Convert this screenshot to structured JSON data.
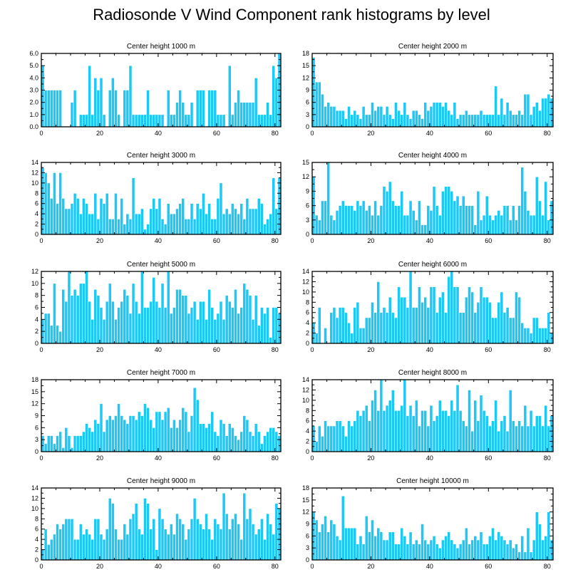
{
  "title": "Radiosonde V Wind Component rank histograms by level",
  "colors": {
    "bar": "#1ec8f5",
    "bar_edge": "#ffffff",
    "axis": "#000000"
  },
  "chart_data": [
    {
      "type": "bar",
      "title": "Center height 1000 m",
      "ylim": [
        0,
        6
      ],
      "yticks": [
        0,
        1,
        2,
        3,
        4,
        5,
        6
      ],
      "ytick_labels": [
        "0.0",
        "1.0",
        "2.0",
        "3.0",
        "4.0",
        "5.0",
        "6.0"
      ],
      "xlim": [
        0,
        82
      ],
      "xticks": [
        0,
        20,
        40,
        60,
        80
      ],
      "xtick_labels": [
        "0",
        "20",
        "40",
        "60",
        "80"
      ],
      "y_side": "left",
      "values": [
        5,
        3,
        3,
        3,
        3,
        3,
        3,
        0,
        0,
        0,
        2,
        3,
        0,
        1,
        1,
        1,
        5,
        1,
        4,
        3,
        4,
        1,
        0,
        3,
        4,
        3,
        1,
        0,
        3,
        3,
        5,
        1,
        1,
        1,
        1,
        1,
        3,
        1,
        1,
        1,
        1,
        1,
        0,
        3,
        1,
        1,
        2,
        3,
        2,
        1,
        1,
        2,
        0,
        3,
        3,
        3,
        0,
        3,
        3,
        3,
        1,
        1,
        1,
        0,
        5,
        1,
        2,
        3,
        2,
        2,
        2,
        2,
        2,
        4,
        1,
        1,
        1,
        2,
        1,
        5,
        4,
        6
      ]
    },
    {
      "type": "bar",
      "title": "Center height 2000 m",
      "ylim": [
        0,
        18
      ],
      "yticks": [
        0,
        3,
        6,
        9,
        12,
        15,
        18
      ],
      "ytick_labels": [
        "0",
        "3",
        "6",
        "9",
        "12",
        "15",
        "18"
      ],
      "xlim": [
        0,
        82
      ],
      "xticks": [
        0,
        20,
        40,
        60,
        80
      ],
      "xtick_labels": [
        "0",
        "20",
        "40",
        "60",
        "80"
      ],
      "y_side": "right",
      "values": [
        17,
        11,
        11,
        8,
        5,
        6,
        5,
        5,
        4,
        4,
        4,
        2,
        5,
        3,
        4,
        3,
        2,
        5,
        3,
        3,
        6,
        4,
        5,
        5,
        3,
        5,
        3,
        2,
        6,
        4,
        3,
        6,
        3,
        2,
        4,
        4,
        3,
        2,
        6,
        4,
        5,
        6,
        6,
        6,
        5,
        6,
        4,
        3,
        6,
        2,
        3,
        3,
        4,
        3,
        3,
        3,
        3,
        4,
        3,
        3,
        3,
        3,
        10,
        3,
        7,
        3,
        6,
        4,
        3,
        3,
        4,
        3,
        8,
        8,
        3,
        5,
        6,
        4,
        7,
        7,
        8,
        7
      ]
    },
    {
      "type": "bar",
      "title": "Center height 3000 m",
      "ylim": [
        0,
        14
      ],
      "yticks": [
        0,
        2,
        4,
        6,
        8,
        10,
        12,
        14
      ],
      "ytick_labels": [
        "0",
        "2",
        "4",
        "6",
        "8",
        "10",
        "12",
        "14"
      ],
      "xlim": [
        0,
        82
      ],
      "xticks": [
        0,
        20,
        40,
        60,
        80
      ],
      "xtick_labels": [
        "0",
        "20",
        "40",
        "60",
        "80"
      ],
      "y_side": "left",
      "values": [
        13,
        12,
        10,
        7,
        12,
        6,
        12,
        7,
        5,
        5,
        6,
        8,
        7,
        4,
        7,
        6,
        4,
        4,
        8,
        3,
        7,
        6,
        8,
        3,
        3,
        8,
        3,
        7,
        2,
        4,
        3,
        11,
        4,
        4,
        5,
        1,
        2,
        5,
        7,
        5,
        7,
        3,
        2,
        6,
        4,
        4,
        5,
        6,
        7,
        3,
        3,
        6,
        3,
        6,
        5,
        8,
        4,
        6,
        3,
        3,
        7,
        10,
        4,
        5,
        4,
        6,
        5,
        4,
        6,
        3,
        7,
        5,
        5,
        5,
        7,
        6,
        2,
        3,
        4,
        11,
        5,
        11
      ]
    },
    {
      "type": "bar",
      "title": "Center height 4000 m",
      "ylim": [
        0,
        15
      ],
      "yticks": [
        0,
        3,
        6,
        9,
        12,
        15
      ],
      "ytick_labels": [
        "0",
        "3",
        "6",
        "9",
        "12",
        "15"
      ],
      "xlim": [
        0,
        82
      ],
      "xticks": [
        0,
        20,
        40,
        60,
        80
      ],
      "xtick_labels": [
        "0",
        "20",
        "40",
        "60",
        "80"
      ],
      "y_side": "right",
      "values": [
        12,
        4,
        3,
        7,
        7,
        15,
        4,
        3,
        5,
        6,
        7,
        6,
        6,
        6,
        5,
        7,
        6,
        7,
        5,
        6,
        4,
        7,
        4,
        6,
        10,
        9,
        11,
        7,
        6,
        6,
        9,
        4,
        4,
        7,
        5,
        3,
        7,
        2,
        2,
        6,
        5,
        10,
        6,
        4,
        9,
        10,
        10,
        9,
        7,
        8,
        6,
        8,
        6,
        6,
        6,
        2,
        9,
        3,
        4,
        8,
        4,
        3,
        4,
        5,
        4,
        6,
        6,
        3,
        6,
        3,
        6,
        14,
        9,
        5,
        4,
        4,
        12,
        7,
        4,
        11,
        3,
        7
      ]
    },
    {
      "type": "bar",
      "title": "Center height 5000 m",
      "ylim": [
        0,
        12
      ],
      "yticks": [
        0,
        2,
        4,
        6,
        8,
        10,
        12
      ],
      "ytick_labels": [
        "0",
        "2",
        "4",
        "6",
        "8",
        "10",
        "12"
      ],
      "xlim": [
        0,
        82
      ],
      "xticks": [
        0,
        20,
        40,
        60,
        80
      ],
      "xtick_labels": [
        "0",
        "20",
        "40",
        "60",
        "80"
      ],
      "y_side": "left",
      "values": [
        4,
        5,
        5,
        3,
        10,
        3,
        2,
        9,
        7,
        12,
        8,
        9,
        8,
        10,
        10,
        12,
        7,
        4,
        9,
        8,
        6,
        4,
        7,
        10,
        7,
        4,
        6,
        7,
        9,
        8,
        5,
        10,
        7,
        5,
        12,
        6,
        6,
        7,
        11,
        7,
        6,
        10,
        6,
        12,
        5,
        6,
        9,
        9,
        8,
        8,
        5,
        6,
        7,
        4,
        7,
        7,
        4,
        9,
        6,
        4,
        5,
        7,
        4,
        8,
        7,
        6,
        9,
        5,
        6,
        10,
        9,
        8,
        4,
        8,
        3,
        6,
        5,
        6,
        1,
        6,
        6,
        5
      ]
    },
    {
      "type": "bar",
      "title": "Center height 6000 m",
      "ylim": [
        0,
        14
      ],
      "yticks": [
        0,
        2,
        4,
        6,
        8,
        10,
        12,
        14
      ],
      "ytick_labels": [
        "0",
        "2",
        "4",
        "6",
        "8",
        "10",
        "12",
        "14"
      ],
      "xlim": [
        0,
        82
      ],
      "xticks": [
        0,
        20,
        40,
        60,
        80
      ],
      "xtick_labels": [
        "0",
        "20",
        "40",
        "60",
        "80"
      ],
      "y_side": "right",
      "values": [
        4,
        2,
        7,
        0,
        3,
        0,
        6,
        7,
        5,
        7,
        7,
        6,
        4,
        2,
        7,
        8,
        3,
        3,
        5,
        5,
        8,
        6,
        12,
        6,
        7,
        6,
        9,
        6,
        5,
        11,
        9,
        9,
        7,
        14,
        7,
        7,
        11,
        8,
        9,
        7,
        11,
        11,
        6,
        9,
        10,
        6,
        13,
        14,
        11,
        11,
        6,
        6,
        9,
        11,
        10,
        6,
        8,
        11,
        9,
        9,
        8,
        5,
        5,
        8,
        10,
        6,
        7,
        5,
        5,
        10,
        9,
        4,
        3,
        3,
        2,
        5,
        5,
        3,
        3,
        3,
        6,
        2
      ]
    },
    {
      "type": "bar",
      "title": "Center height 7000 m",
      "ylim": [
        0,
        18
      ],
      "yticks": [
        0,
        3,
        6,
        9,
        12,
        15,
        18
      ],
      "ytick_labels": [
        "0",
        "3",
        "6",
        "9",
        "12",
        "15",
        "18"
      ],
      "xlim": [
        0,
        82
      ],
      "xticks": [
        0,
        20,
        40,
        60,
        80
      ],
      "xtick_labels": [
        "0",
        "20",
        "40",
        "60",
        "80"
      ],
      "y_side": "left",
      "values": [
        4,
        2,
        4,
        4,
        2,
        4,
        5,
        1,
        6,
        4,
        1,
        4,
        4,
        4,
        5,
        7,
        6,
        5,
        8,
        7,
        12,
        5,
        8,
        9,
        8,
        9,
        12,
        9,
        8,
        7,
        9,
        9,
        8,
        10,
        9,
        12,
        11,
        8,
        6,
        10,
        10,
        8,
        10,
        11,
        6,
        8,
        6,
        8,
        11,
        10,
        5,
        9,
        16,
        13,
        7,
        7,
        6,
        7,
        10,
        5,
        4,
        8,
        7,
        4,
        7,
        6,
        4,
        3,
        5,
        9,
        8,
        5,
        4,
        7,
        5,
        2,
        4,
        5,
        6,
        6,
        5,
        4
      ]
    },
    {
      "type": "bar",
      "title": "Center height 8000 m",
      "ylim": [
        0,
        14
      ],
      "yticks": [
        0,
        2,
        4,
        6,
        8,
        10,
        12,
        14
      ],
      "ytick_labels": [
        "0",
        "2",
        "4",
        "6",
        "8",
        "10",
        "12",
        "14"
      ],
      "xlim": [
        0,
        82
      ],
      "xticks": [
        0,
        20,
        40,
        60,
        80
      ],
      "xtick_labels": [
        "0",
        "20",
        "40",
        "60",
        "80"
      ],
      "y_side": "right",
      "values": [
        5,
        2,
        5,
        3,
        6,
        5,
        5,
        5,
        6,
        6,
        5,
        3,
        6,
        5,
        6,
        8,
        7,
        8,
        9,
        6,
        10,
        12,
        8,
        14,
        8,
        9,
        10,
        12,
        8,
        8,
        9,
        14,
        7,
        9,
        7,
        10,
        5,
        8,
        8,
        5,
        9,
        6,
        7,
        10,
        8,
        8,
        7,
        10,
        8,
        13,
        8,
        6,
        5,
        12,
        4,
        10,
        6,
        11,
        8,
        7,
        5,
        6,
        10,
        4,
        6,
        7,
        4,
        12,
        6,
        5,
        6,
        5,
        9,
        5,
        8,
        5,
        7,
        7,
        5,
        9,
        5,
        7
      ]
    },
    {
      "type": "bar",
      "title": "Center height 9000 m",
      "ylim": [
        0,
        14
      ],
      "yticks": [
        0,
        2,
        4,
        6,
        8,
        10,
        12,
        14
      ],
      "ytick_labels": [
        "0",
        "2",
        "4",
        "6",
        "8",
        "10",
        "12",
        "14"
      ],
      "xlim": [
        0,
        82
      ],
      "xticks": [
        0,
        20,
        40,
        60,
        80
      ],
      "xtick_labels": [
        "0",
        "20",
        "40",
        "60",
        "80"
      ],
      "y_side": "left",
      "values": [
        2,
        6,
        3,
        4,
        5,
        7,
        6,
        7,
        8,
        8,
        8,
        4,
        4,
        7,
        5,
        6,
        5,
        4,
        8,
        8,
        5,
        4,
        6,
        12,
        11,
        6,
        4,
        4,
        7,
        5,
        8,
        9,
        11,
        6,
        5,
        12,
        11,
        6,
        8,
        2,
        10,
        8,
        6,
        5,
        7,
        5,
        9,
        8,
        7,
        4,
        6,
        8,
        12,
        8,
        7,
        6,
        9,
        6,
        4,
        8,
        7,
        6,
        13,
        9,
        6,
        8,
        9,
        7,
        4,
        13,
        8,
        10,
        7,
        5,
        6,
        8,
        4,
        9,
        7,
        5,
        11,
        10
      ]
    },
    {
      "type": "bar",
      "title": "Center height 10000 m",
      "ylim": [
        0,
        18
      ],
      "yticks": [
        0,
        3,
        6,
        9,
        12,
        15,
        18
      ],
      "ytick_labels": [
        "0",
        "3",
        "6",
        "9",
        "12",
        "15",
        "18"
      ],
      "xlim": [
        0,
        82
      ],
      "xticks": [
        0,
        20,
        40,
        60,
        80
      ],
      "xtick_labels": [
        "0",
        "20",
        "40",
        "60",
        "80"
      ],
      "y_side": "right",
      "values": [
        12,
        10,
        7,
        9,
        11,
        7,
        10,
        9,
        6,
        5,
        16,
        8,
        8,
        8,
        8,
        4,
        6,
        4,
        11,
        7,
        10,
        6,
        8,
        7,
        5,
        5,
        7,
        7,
        4,
        4,
        8,
        6,
        4,
        7,
        4,
        5,
        4,
        9,
        5,
        4,
        5,
        6,
        4,
        3,
        5,
        6,
        7,
        5,
        4,
        3,
        4,
        5,
        8,
        4,
        5,
        6,
        5,
        7,
        4,
        4,
        6,
        8,
        5,
        7,
        6,
        5,
        4,
        5,
        3,
        4,
        2,
        6,
        2,
        8,
        2,
        5,
        12,
        9,
        5,
        6,
        12,
        5
      ]
    }
  ]
}
